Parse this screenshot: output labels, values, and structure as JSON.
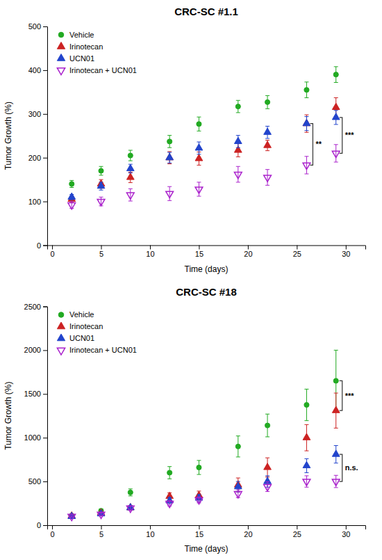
{
  "chart_data": [
    {
      "type": "scatter",
      "title": "CRC-SC #1.1",
      "xlabel": "Time (days)",
      "ylabel": "Tumor Growth (%)",
      "xlim": [
        -0.5,
        32
      ],
      "xticks": [
        0,
        5,
        10,
        15,
        20,
        25,
        30
      ],
      "ylim": [
        0,
        500
      ],
      "yticks": [
        0,
        100,
        200,
        300,
        400,
        500
      ],
      "legend": "upper left",
      "x": [
        2,
        5,
        8,
        12,
        15,
        19,
        22,
        26,
        29
      ],
      "series": [
        {
          "name": "Vehicle",
          "color": "#22aa22",
          "marker": "circle",
          "values": [
            140,
            170,
            205,
            237,
            277,
            317,
            327,
            355,
            390
          ],
          "errors": [
            8,
            10,
            12,
            14,
            16,
            14,
            15,
            18,
            18
          ]
        },
        {
          "name": "Irinotecan",
          "color": "#cc2222",
          "marker": "triangle-up",
          "values": [
            105,
            140,
            155,
            200,
            198,
            217,
            228,
            278,
            315
          ],
          "errors": [
            7,
            10,
            12,
            14,
            15,
            15,
            12,
            20,
            22
          ]
        },
        {
          "name": "UCN01",
          "color": "#2244cc",
          "marker": "triangle-up",
          "values": [
            110,
            135,
            175,
            200,
            222,
            237,
            258,
            278,
            292
          ],
          "errors": [
            6,
            9,
            10,
            12,
            14,
            14,
            14,
            16,
            16
          ]
        },
        {
          "name": "Irinotecan + UCN01",
          "color": "#aa22cc",
          "marker": "triangle-down",
          "values": [
            92,
            100,
            115,
            118,
            128,
            162,
            155,
            183,
            210
          ],
          "errors": [
            8,
            10,
            14,
            16,
            16,
            18,
            18,
            20,
            20
          ]
        }
      ],
      "annotations": [
        {
          "text": "**",
          "x": 26,
          "between": [
            "Irinotecan",
            "Irinotecan + UCN01"
          ]
        },
        {
          "text": "***",
          "x": 29,
          "between": [
            "UCN01",
            "Irinotecan + UCN01"
          ]
        }
      ]
    },
    {
      "type": "scatter",
      "title": "CRC-SC #18",
      "xlabel": "Time (days)",
      "ylabel": "Tumor Growth (%)",
      "xlim": [
        -0.5,
        32
      ],
      "xticks": [
        0,
        5,
        10,
        15,
        20,
        25,
        30
      ],
      "ylim": [
        0,
        2500
      ],
      "yticks": [
        0,
        500,
        1000,
        1500,
        2000,
        2500
      ],
      "legend": "upper left",
      "x": [
        2,
        5,
        8,
        12,
        15,
        19,
        22,
        26,
        29
      ],
      "series": [
        {
          "name": "Vehicle",
          "color": "#22aa22",
          "marker": "circle",
          "values": [
            110,
            165,
            375,
            600,
            660,
            900,
            1140,
            1375,
            1650
          ],
          "errors": [
            10,
            20,
            40,
            70,
            80,
            120,
            130,
            180,
            350
          ]
        },
        {
          "name": "Irinotecan",
          "color": "#cc2222",
          "marker": "triangle-up",
          "values": [
            105,
            140,
            200,
            330,
            340,
            460,
            660,
            1000,
            1310
          ],
          "errors": [
            10,
            18,
            25,
            40,
            50,
            80,
            110,
            150,
            200
          ]
        },
        {
          "name": "UCN01",
          "color": "#2244cc",
          "marker": "triangle-up",
          "values": [
            100,
            130,
            200,
            280,
            310,
            440,
            500,
            680,
            810
          ],
          "errors": [
            8,
            15,
            25,
            35,
            40,
            60,
            65,
            80,
            100
          ]
        },
        {
          "name": "Irinotecan + UCN01",
          "color": "#aa22cc",
          "marker": "triangle-down",
          "values": [
            100,
            125,
            195,
            250,
            290,
            360,
            440,
            500,
            500
          ],
          "errors": [
            8,
            15,
            22,
            30,
            35,
            45,
            55,
            65,
            70
          ]
        }
      ],
      "annotations": [
        {
          "text": "***",
          "x": 29,
          "between": [
            "Vehicle",
            "Irinotecan"
          ]
        },
        {
          "text": "n.s.",
          "x": 29,
          "between": [
            "UCN01",
            "Irinotecan + UCN01"
          ]
        }
      ]
    }
  ]
}
